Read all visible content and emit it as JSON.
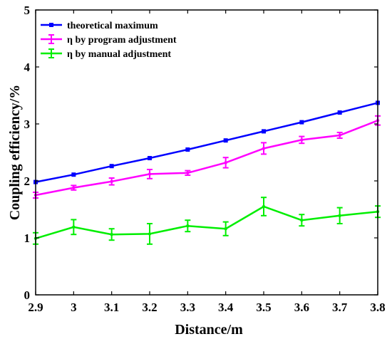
{
  "chart_data": {
    "type": "line",
    "xlabel": "Distance/m",
    "ylabel": "Coupling efficiency/%",
    "xlim": [
      2.9,
      3.8
    ],
    "ylim": [
      0,
      5
    ],
    "x_ticks": [
      2.9,
      3.0,
      3.1,
      3.2,
      3.3,
      3.4,
      3.5,
      3.6,
      3.7,
      3.8
    ],
    "x_tick_labels": [
      "2.9",
      "3",
      "3.1",
      "3.2",
      "3.3",
      "3.4",
      "3.5",
      "3.6",
      "3.7",
      "3.8"
    ],
    "y_ticks": [
      0,
      1,
      2,
      3,
      4,
      5
    ],
    "y_tick_labels": [
      "0",
      "1",
      "2",
      "3",
      "4",
      "5"
    ],
    "grid": false,
    "legend_position": "top-left",
    "x": [
      2.9,
      3.0,
      3.1,
      3.2,
      3.3,
      3.4,
      3.5,
      3.6,
      3.7,
      3.8
    ],
    "series": [
      {
        "name": "theoretical maximum",
        "color": "#0000ff",
        "marker": "square",
        "values": [
          1.98,
          2.11,
          2.26,
          2.4,
          2.55,
          2.71,
          2.87,
          3.03,
          3.2,
          3.37
        ]
      },
      {
        "name": "η by program adjustment",
        "color": "#ff00ff",
        "marker": "errorbar",
        "values": [
          1.75,
          1.88,
          1.99,
          2.12,
          2.14,
          2.32,
          2.57,
          2.72,
          2.8,
          3.06
        ],
        "errors": [
          0.05,
          0.04,
          0.06,
          0.08,
          0.04,
          0.09,
          0.1,
          0.06,
          0.05,
          0.08
        ]
      },
      {
        "name": "η by manual adjustment",
        "color": "#00ee00",
        "marker": "errorbar",
        "values": [
          0.99,
          1.19,
          1.06,
          1.07,
          1.21,
          1.16,
          1.55,
          1.31,
          1.39,
          1.46
        ],
        "errors": [
          0.1,
          0.13,
          0.1,
          0.18,
          0.1,
          0.12,
          0.16,
          0.1,
          0.14,
          0.1
        ]
      }
    ]
  }
}
